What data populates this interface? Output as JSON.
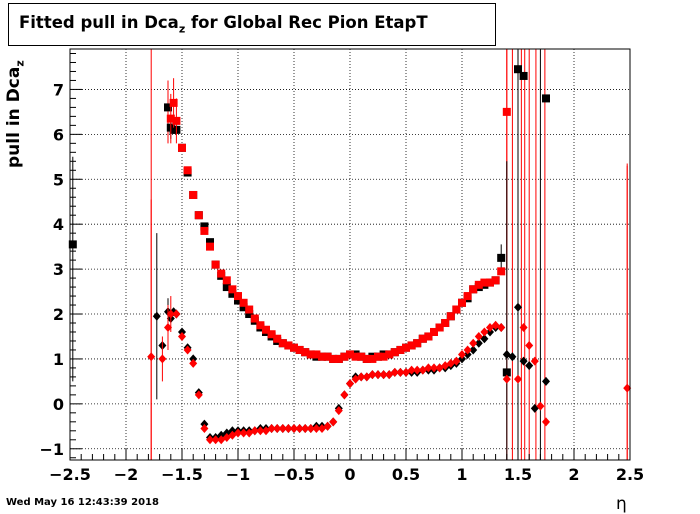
{
  "chart_data": {
    "type": "scatter",
    "title_main": "Fitted pull in Dca",
    "title_sub": "z",
    "title_rest": " for Global Rec Pion EtapT",
    "ylabel_main": "pull in Dca",
    "ylabel_sub": "z",
    "xlabel": "η",
    "xlim": [
      -2.5,
      2.5
    ],
    "ylim": [
      -1.25,
      7.9
    ],
    "grid": true,
    "x_ticks": [
      -2.5,
      -2,
      -1.5,
      -1,
      -0.5,
      0,
      0.5,
      1,
      1.5,
      2,
      2.5
    ],
    "x_tick_labels": [
      "−2.5",
      "−2",
      "−1.5",
      "−1",
      "−0.5",
      "0",
      "0.5",
      "1",
      "1.5",
      "2",
      "2.5"
    ],
    "y_ticks": [
      -1,
      0,
      1,
      2,
      3,
      4,
      5,
      6,
      7
    ],
    "y_tick_labels": [
      "−1",
      "0",
      "1",
      "2",
      "3",
      "4",
      "5",
      "6",
      "7"
    ],
    "series": [
      {
        "marker": "square",
        "color": "#000000",
        "x": [
          -2.475,
          -1.625,
          -1.6,
          -1.575,
          -1.55,
          -1.5,
          -1.45,
          -1.4,
          -1.35,
          -1.3,
          -1.25,
          -1.2,
          -1.15,
          -1.1,
          -1.05,
          -1.0,
          -0.95,
          -0.9,
          -0.85,
          -0.8,
          -0.75,
          -0.7,
          -0.65,
          -0.6,
          -0.55,
          -0.5,
          -0.45,
          -0.4,
          -0.35,
          -0.3,
          -0.25,
          -0.2,
          -0.15,
          -0.1,
          -0.05,
          0.0,
          0.05,
          0.1,
          0.15,
          0.2,
          0.25,
          0.3,
          0.35,
          0.4,
          0.45,
          0.5,
          0.55,
          0.6,
          0.65,
          0.7,
          0.75,
          0.8,
          0.85,
          0.9,
          0.95,
          1.0,
          1.05,
          1.1,
          1.15,
          1.2,
          1.25,
          1.3,
          1.35,
          1.4,
          1.5,
          1.55,
          1.75
        ],
        "y": [
          3.55,
          6.6,
          6.15,
          6.1,
          6.1,
          5.7,
          5.15,
          4.65,
          4.2,
          3.95,
          3.6,
          3.1,
          2.85,
          2.6,
          2.45,
          2.3,
          2.15,
          2.0,
          1.85,
          1.7,
          1.6,
          1.5,
          1.4,
          1.35,
          1.3,
          1.25,
          1.2,
          1.15,
          1.1,
          1.05,
          1.05,
          1.05,
          1.0,
          1.0,
          1.05,
          1.1,
          1.1,
          1.05,
          1.0,
          1.05,
          1.05,
          1.1,
          1.1,
          1.15,
          1.2,
          1.25,
          1.3,
          1.35,
          1.45,
          1.5,
          1.6,
          1.7,
          1.8,
          1.95,
          2.1,
          2.25,
          2.35,
          2.55,
          2.6,
          2.65,
          2.7,
          2.75,
          3.25,
          0.7,
          7.45,
          7.3,
          6.8
        ],
        "err": [
          0,
          0,
          0.25,
          0,
          0,
          0,
          0,
          0,
          0,
          0,
          0,
          0,
          0,
          0,
          0,
          0,
          0,
          0,
          0,
          0,
          0,
          0,
          0,
          0,
          0,
          0,
          0,
          0,
          0,
          0,
          0,
          0,
          0,
          0,
          0,
          0,
          0,
          0,
          0,
          0,
          0,
          0,
          0,
          0,
          0,
          0,
          0,
          0,
          0,
          0,
          0,
          0,
          0,
          0,
          0,
          0,
          0,
          0,
          0,
          0,
          0,
          0,
          0.3,
          0,
          0,
          0,
          0
        ]
      },
      {
        "marker": "square",
        "color": "#ff0000",
        "x": [
          -1.6,
          -1.575,
          -1.55,
          -1.5,
          -1.45,
          -1.4,
          -1.35,
          -1.3,
          -1.25,
          -1.2,
          -1.15,
          -1.1,
          -1.05,
          -1.0,
          -0.95,
          -0.9,
          -0.85,
          -0.8,
          -0.75,
          -0.7,
          -0.65,
          -0.6,
          -0.55,
          -0.5,
          -0.45,
          -0.4,
          -0.35,
          -0.3,
          -0.25,
          -0.2,
          -0.15,
          -0.1,
          -0.05,
          0.0,
          0.05,
          0.1,
          0.15,
          0.2,
          0.25,
          0.3,
          0.35,
          0.4,
          0.45,
          0.5,
          0.55,
          0.6,
          0.65,
          0.7,
          0.75,
          0.8,
          0.85,
          0.9,
          0.95,
          1.0,
          1.05,
          1.1,
          1.15,
          1.2,
          1.25,
          1.3,
          1.35,
          1.4
        ],
        "y": [
          6.35,
          6.7,
          6.3,
          5.7,
          5.2,
          4.65,
          4.2,
          3.85,
          3.5,
          3.1,
          2.9,
          2.75,
          2.55,
          2.4,
          2.25,
          2.1,
          1.9,
          1.75,
          1.65,
          1.55,
          1.45,
          1.35,
          1.3,
          1.25,
          1.2,
          1.15,
          1.1,
          1.1,
          1.05,
          1.05,
          1.0,
          1.0,
          1.05,
          1.1,
          1.05,
          1.05,
          1.0,
          1.0,
          1.05,
          1.05,
          1.1,
          1.15,
          1.2,
          1.25,
          1.3,
          1.35,
          1.45,
          1.5,
          1.6,
          1.7,
          1.8,
          1.95,
          2.1,
          2.25,
          2.4,
          2.55,
          2.65,
          2.7,
          2.7,
          2.75,
          2.95,
          6.5
        ],
        "err": [
          0.55,
          0.55,
          0.5,
          0,
          0,
          0,
          0,
          0,
          0,
          0,
          0,
          0,
          0,
          0,
          0,
          0,
          0,
          0,
          0,
          0,
          0,
          0,
          0,
          0,
          0,
          0,
          0,
          0,
          0,
          0,
          0,
          0,
          0,
          0,
          0,
          0,
          0,
          0,
          0,
          0,
          0,
          0,
          0,
          0,
          0,
          0,
          0,
          0,
          0,
          0,
          0,
          0,
          0,
          0,
          0,
          0,
          0,
          0,
          0,
          0,
          0,
          3.5
        ]
      },
      {
        "marker": "diamond",
        "color": "#000000",
        "x": [
          -1.725,
          -1.675,
          -1.625,
          -1.6,
          -1.575,
          -1.55,
          -1.5,
          -1.45,
          -1.4,
          -1.35,
          -1.3,
          -1.25,
          -1.2,
          -1.15,
          -1.1,
          -1.05,
          -1.0,
          -0.95,
          -0.9,
          -0.85,
          -0.8,
          -0.75,
          -0.7,
          -0.65,
          -0.6,
          -0.55,
          -0.5,
          -0.45,
          -0.4,
          -0.35,
          -0.3,
          -0.25,
          -0.2,
          -0.15,
          -0.1,
          -0.05,
          0.0,
          0.05,
          0.1,
          0.15,
          0.2,
          0.25,
          0.3,
          0.35,
          0.4,
          0.45,
          0.5,
          0.55,
          0.6,
          0.65,
          0.7,
          0.75,
          0.8,
          0.85,
          0.9,
          0.95,
          1.0,
          1.05,
          1.1,
          1.15,
          1.2,
          1.25,
          1.3,
          1.35,
          1.4,
          1.45,
          1.5,
          1.55,
          1.6,
          1.65,
          1.75
        ],
        "y": [
          1.95,
          1.3,
          2.05,
          1.9,
          2.05,
          2.0,
          1.6,
          1.25,
          1.0,
          0.25,
          -0.45,
          -0.75,
          -0.75,
          -0.7,
          -0.65,
          -0.6,
          -0.6,
          -0.6,
          -0.6,
          -0.6,
          -0.55,
          -0.55,
          -0.55,
          -0.55,
          -0.55,
          -0.55,
          -0.55,
          -0.55,
          -0.55,
          -0.55,
          -0.5,
          -0.5,
          -0.5,
          -0.4,
          -0.1,
          0.2,
          0.45,
          0.6,
          0.6,
          0.6,
          0.65,
          0.65,
          0.65,
          0.65,
          0.7,
          0.7,
          0.7,
          0.7,
          0.7,
          0.75,
          0.75,
          0.75,
          0.8,
          0.8,
          0.85,
          0.9,
          1.0,
          1.1,
          1.2,
          1.35,
          1.45,
          1.6,
          1.7,
          1.7,
          1.1,
          1.05,
          2.15,
          0.95,
          0.85,
          -0.1,
          0.5
        ],
        "err": [
          1.85,
          0,
          0.3,
          0,
          0,
          0,
          0,
          0,
          0,
          0,
          0,
          0,
          0,
          0,
          0,
          0,
          0,
          0,
          0,
          0,
          0,
          0,
          0,
          0,
          0,
          0,
          0,
          0,
          0,
          0,
          0,
          0,
          0,
          0,
          0,
          0,
          0,
          0,
          0,
          0,
          0,
          0,
          0,
          0,
          0,
          0,
          0,
          0,
          0,
          0,
          0,
          0,
          0,
          0,
          0,
          0,
          0,
          0,
          0,
          0,
          0,
          0,
          0,
          0,
          4.3,
          0,
          0,
          0,
          0,
          0,
          0
        ]
      },
      {
        "marker": "diamond",
        "color": "#ff0000",
        "x": [
          -1.775,
          -1.675,
          -1.625,
          -1.6,
          -1.55,
          -1.5,
          -1.45,
          -1.4,
          -1.35,
          -1.3,
          -1.25,
          -1.2,
          -1.15,
          -1.1,
          -1.05,
          -1.0,
          -0.95,
          -0.9,
          -0.85,
          -0.8,
          -0.75,
          -0.7,
          -0.65,
          -0.6,
          -0.55,
          -0.5,
          -0.45,
          -0.4,
          -0.35,
          -0.3,
          -0.25,
          -0.2,
          -0.15,
          -0.1,
          -0.05,
          0.0,
          0.05,
          0.1,
          0.15,
          0.2,
          0.25,
          0.3,
          0.35,
          0.4,
          0.45,
          0.5,
          0.55,
          0.6,
          0.65,
          0.7,
          0.75,
          0.8,
          0.85,
          0.9,
          0.95,
          1.0,
          1.05,
          1.1,
          1.15,
          1.2,
          1.25,
          1.3,
          1.35,
          1.4,
          1.5,
          1.55,
          1.6,
          1.65,
          1.7,
          1.75,
          2.475
        ],
        "y": [
          1.05,
          1.0,
          1.7,
          2.0,
          2.0,
          1.5,
          1.2,
          0.9,
          0.2,
          -0.55,
          -0.8,
          -0.8,
          -0.8,
          -0.75,
          -0.7,
          -0.65,
          -0.65,
          -0.65,
          -0.6,
          -0.6,
          -0.6,
          -0.55,
          -0.55,
          -0.55,
          -0.55,
          -0.55,
          -0.55,
          -0.55,
          -0.55,
          -0.55,
          -0.55,
          -0.5,
          -0.4,
          -0.15,
          0.2,
          0.45,
          0.55,
          0.6,
          0.6,
          0.65,
          0.65,
          0.65,
          0.65,
          0.7,
          0.7,
          0.7,
          0.75,
          0.75,
          0.75,
          0.8,
          0.8,
          0.8,
          0.85,
          0.9,
          0.95,
          1.1,
          1.2,
          1.35,
          1.5,
          1.6,
          1.7,
          1.75,
          1.7,
          0.55,
          0.55,
          1.7,
          1.3,
          0.95,
          -0.05,
          -0.4,
          0.35
        ],
        "err": [
          3.5,
          0.5,
          0.5,
          0.4,
          0,
          0,
          0,
          0,
          0,
          0,
          0,
          0,
          0,
          0,
          0,
          0,
          0,
          0,
          0,
          0,
          0,
          0,
          0,
          0,
          0,
          0,
          0,
          0,
          0,
          0,
          0,
          0,
          0,
          0,
          0,
          0,
          0,
          0,
          0,
          0,
          0,
          0,
          0,
          0,
          0,
          0,
          0,
          0,
          0,
          0,
          0,
          0,
          0,
          0,
          0,
          0,
          0,
          0,
          0,
          0,
          0,
          0,
          0,
          0,
          0,
          0,
          0,
          0,
          0,
          0,
          5.0
        ]
      }
    ],
    "vertical_lines": [
      {
        "x": -2.475,
        "color": "#000000",
        "y0": 0.5,
        "y1": 5.5
      },
      {
        "x": -1.775,
        "color": "#ff0000",
        "y0": -1.25,
        "y1": 7.9
      },
      {
        "x": -1.625,
        "color": "#ff0000",
        "y0": 5.8,
        "y1": 7.2
      },
      {
        "x": 1.4,
        "color": "#ff0000",
        "y0": -1.25,
        "y1": 7.9
      },
      {
        "x": 1.45,
        "color": "#ff0000",
        "y0": -1.25,
        "y1": 7.9
      },
      {
        "x": 1.5,
        "color": "#000000",
        "y0": -1.25,
        "y1": 7.9
      },
      {
        "x": 1.53,
        "color": "#ff0000",
        "y0": -1.25,
        "y1": 7.9
      },
      {
        "x": 1.56,
        "color": "#ff0000",
        "y0": -1.25,
        "y1": 7.9
      },
      {
        "x": 1.6,
        "color": "#ff0000",
        "y0": -1.25,
        "y1": 7.9
      },
      {
        "x": 1.66,
        "color": "#ff0000",
        "y0": -1.25,
        "y1": 7.9
      },
      {
        "x": 1.7,
        "color": "#000000",
        "y0": -1.25,
        "y1": 7.9
      },
      {
        "x": 1.74,
        "color": "#ff0000",
        "y0": -1.25,
        "y1": 7.9
      },
      {
        "x": 2.475,
        "color": "#ff0000",
        "y0": -1.25,
        "y1": 5.3
      }
    ]
  },
  "footer": {
    "datestamp": "Wed May 16 12:43:39 2018"
  }
}
